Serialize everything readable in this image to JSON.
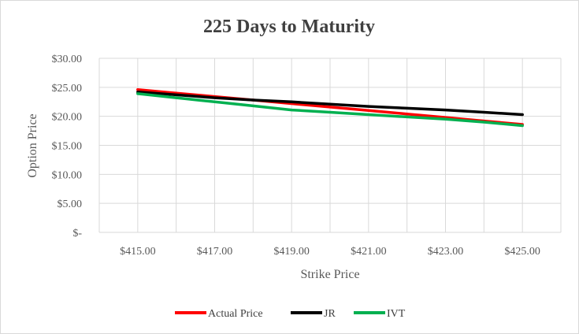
{
  "chart_data": {
    "type": "line",
    "title": "225 Days to Maturity",
    "xlabel": "Strike Price",
    "ylabel": "Option Price",
    "x": [
      415,
      416,
      417,
      418,
      419,
      420,
      421,
      422,
      423,
      424,
      425
    ],
    "x_tick_labels": [
      "$415.00",
      "$417.00",
      "$419.00",
      "$421.00",
      "$423.00",
      "$425.00"
    ],
    "x_tick_values": [
      415,
      417,
      419,
      421,
      423,
      425
    ],
    "y_tick_labels": [
      "$-",
      "$5.00",
      "$10.00",
      "$15.00",
      "$20.00",
      "$25.00",
      "$30.00"
    ],
    "y_tick_values": [
      0,
      5,
      10,
      15,
      20,
      25,
      30
    ],
    "xlim": [
      414,
      426
    ],
    "ylim": [
      0,
      30
    ],
    "grid": true,
    "legend_position": "bottom",
    "series": [
      {
        "name": "Actual Price",
        "color": "#ff0000",
        "values": [
          24.6,
          24.0,
          23.4,
          22.8,
          22.2,
          21.6,
          21.0,
          20.4,
          19.8,
          19.2,
          18.6
        ]
      },
      {
        "name": "JR",
        "color": "#000000",
        "values": [
          24.2,
          23.7,
          23.2,
          22.8,
          22.5,
          22.1,
          21.7,
          21.4,
          21.1,
          20.7,
          20.3
        ]
      },
      {
        "name": "IVT",
        "color": "#00b050",
        "values": [
          23.9,
          23.2,
          22.5,
          21.8,
          21.1,
          20.7,
          20.3,
          19.9,
          19.5,
          19.0,
          18.4
        ]
      }
    ]
  }
}
